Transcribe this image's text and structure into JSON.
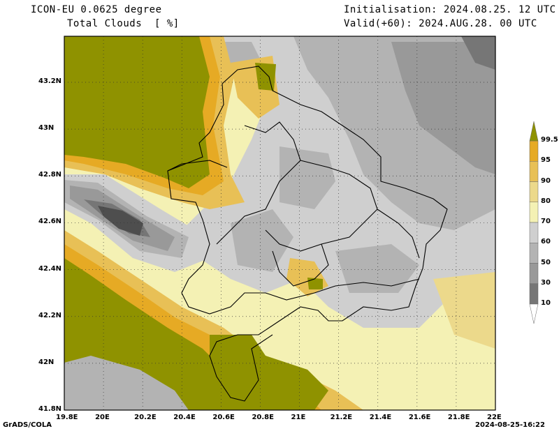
{
  "header": {
    "model": "ICON-EU 0.0625 degree",
    "variable": "Total Clouds  [ %]",
    "init": "Initialisation: 2024.08.25. 12 UTC",
    "valid": "Valid(+60): 2024.AUG.28. 00 UTC"
  },
  "axes": {
    "lon_labels": [
      "19.8E",
      "20E",
      "20.2E",
      "20.4E",
      "20.6E",
      "20.8E",
      "21E",
      "21.2E",
      "21.4E",
      "21.6E",
      "21.8E",
      "22E"
    ],
    "lat_labels": [
      "43.2N",
      "43N",
      "42.8N",
      "42.6N",
      "42.4N",
      "42.2N",
      "42N",
      "41.8N"
    ]
  },
  "colorbar": {
    "levels": [
      "99.5",
      "95",
      "90",
      "80",
      "70",
      "60",
      "50",
      "30",
      "10"
    ],
    "colors": {
      "c10": "#4e4e4e",
      "c30": "#767676",
      "c50": "#999999",
      "c60": "#b3b3b3",
      "c70": "#cfcfcf",
      "c80": "#f4f1b4",
      "c90": "#ecd98b",
      "c95": "#e8c056",
      "c99": "#e6aa24",
      "c100": "#8f9200"
    }
  },
  "footer": {
    "left": "GrADS/COLA",
    "right": "2024-08-25-16:22"
  }
}
